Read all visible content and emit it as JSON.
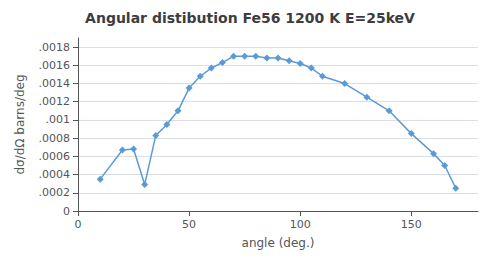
{
  "chart_data": {
    "type": "line",
    "title": "Angular distibution Fe56 1200 K E=25keV",
    "xlabel": "angle (deg.)",
    "ylabel": "dσ/dΩ barns/deg",
    "x": [
      10,
      20,
      25,
      30,
      35,
      40,
      45,
      50,
      55,
      60,
      65,
      70,
      75,
      80,
      85,
      90,
      95,
      100,
      105,
      110,
      120,
      130,
      140,
      150,
      160,
      165,
      170
    ],
    "values": [
      0.00035,
      0.00067,
      0.00068,
      0.00029,
      0.00083,
      0.00095,
      0.0011,
      0.00135,
      0.00148,
      0.00157,
      0.00163,
      0.0017,
      0.0017,
      0.0017,
      0.00168,
      0.00168,
      0.00165,
      0.00162,
      0.00157,
      0.00148,
      0.0014,
      0.00125,
      0.0011,
      0.00085,
      0.00063,
      0.0005,
      0.00025
    ],
    "color": "#5b9bd5",
    "marker": "diamond",
    "xlim": [
      0,
      180
    ],
    "ylim": [
      0,
      0.0019
    ],
    "xticks": [
      0,
      50,
      100,
      150
    ],
    "yticks": [
      0,
      {
        "value": 0.0002,
        "label": ".0002"
      },
      {
        "value": 0.0004,
        "label": ".0004"
      },
      {
        "value": 0.0006,
        "label": ".0006"
      },
      {
        "value": 0.0008,
        "label": ".0008"
      },
      {
        "value": 0.001,
        "label": ".001"
      },
      {
        "value": 0.0012,
        "label": ".0012"
      },
      {
        "value": 0.0014,
        "label": ".0014"
      },
      {
        "value": 0.0016,
        "label": ".0016"
      },
      {
        "value": 0.0018,
        "label": ".0018"
      }
    ],
    "grid": true
  }
}
